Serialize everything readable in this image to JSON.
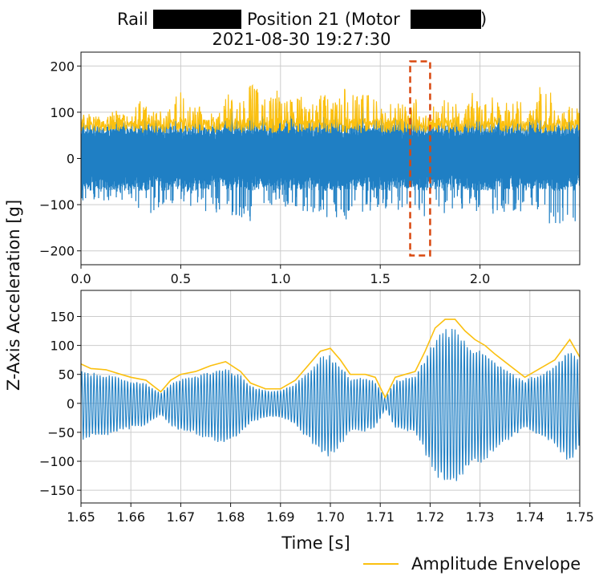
{
  "title": {
    "part1": "Rail",
    "part2": "Position 21 (Motor",
    "part3": ")",
    "line2": "2021-08-30 19:27:30"
  },
  "ylabel": "Z-Axis Acceleration [g]",
  "xlabel": "Time [s]",
  "legend": {
    "envelope_label": "Amplitude Envelope"
  },
  "colors": {
    "signal": "#1f7fc4",
    "envelope": "#fbc010",
    "highlight_box": "#d9480f",
    "redaction": "#000000",
    "grid": "#cccccc"
  },
  "chart_data": [
    {
      "type": "line",
      "x_range": [
        0.0,
        2.5
      ],
      "xlim": [
        0.0,
        2.5
      ],
      "ylim": [
        -230,
        230
      ],
      "xticks": [
        0.0,
        0.5,
        1.0,
        1.5,
        2.0
      ],
      "xtick_labels": [
        "0.0",
        "0.5",
        "1.0",
        "1.5",
        "2.0"
      ],
      "yticks": [
        200,
        100,
        0,
        -100,
        -200
      ],
      "ytick_labels": [
        "200",
        "100",
        "0",
        "−100",
        "−200"
      ],
      "grid": true,
      "highlight_box": {
        "x": [
          1.65,
          1.75
        ],
        "y": [
          -210,
          210
        ]
      },
      "envelope_peaks": [
        {
          "x": 0.02,
          "y": 100
        },
        {
          "x": 0.06,
          "y": 105
        },
        {
          "x": 0.1,
          "y": 90
        },
        {
          "x": 0.17,
          "y": 105
        },
        {
          "x": 0.24,
          "y": 95
        },
        {
          "x": 0.3,
          "y": 140
        },
        {
          "x": 0.35,
          "y": 120
        },
        {
          "x": 0.42,
          "y": 95
        },
        {
          "x": 0.47,
          "y": 150
        },
        {
          "x": 0.52,
          "y": 140
        },
        {
          "x": 0.58,
          "y": 110
        },
        {
          "x": 0.64,
          "y": 120
        },
        {
          "x": 0.69,
          "y": 100
        },
        {
          "x": 0.74,
          "y": 145
        },
        {
          "x": 0.8,
          "y": 120
        },
        {
          "x": 0.86,
          "y": 170
        },
        {
          "x": 0.92,
          "y": 130
        },
        {
          "x": 0.98,
          "y": 150
        },
        {
          "x": 1.04,
          "y": 125
        },
        {
          "x": 1.1,
          "y": 140
        },
        {
          "x": 1.16,
          "y": 120
        },
        {
          "x": 1.22,
          "y": 145
        },
        {
          "x": 1.28,
          "y": 125
        },
        {
          "x": 1.33,
          "y": 160
        },
        {
          "x": 1.39,
          "y": 140
        },
        {
          "x": 1.45,
          "y": 155
        },
        {
          "x": 1.51,
          "y": 120
        },
        {
          "x": 1.57,
          "y": 135
        },
        {
          "x": 1.63,
          "y": 110
        },
        {
          "x": 1.72,
          "y": 150
        },
        {
          "x": 1.78,
          "y": 110
        },
        {
          "x": 1.84,
          "y": 140
        },
        {
          "x": 1.9,
          "y": 110
        },
        {
          "x": 1.96,
          "y": 145
        },
        {
          "x": 2.02,
          "y": 115
        },
        {
          "x": 2.08,
          "y": 140
        },
        {
          "x": 2.14,
          "y": 120
        },
        {
          "x": 2.2,
          "y": 130
        },
        {
          "x": 2.26,
          "y": 110
        },
        {
          "x": 2.32,
          "y": 180
        },
        {
          "x": 2.38,
          "y": 120
        },
        {
          "x": 2.44,
          "y": 130
        },
        {
          "x": 2.49,
          "y": 110
        }
      ],
      "signal_minima": [
        {
          "x": 0.1,
          "y": -95
        },
        {
          "x": 0.22,
          "y": -100
        },
        {
          "x": 0.35,
          "y": -120
        },
        {
          "x": 0.49,
          "y": -90
        },
        {
          "x": 0.58,
          "y": -110
        },
        {
          "x": 0.86,
          "y": -140
        },
        {
          "x": 0.98,
          "y": -100
        },
        {
          "x": 1.14,
          "y": -120
        },
        {
          "x": 1.33,
          "y": -135
        },
        {
          "x": 1.52,
          "y": -110
        },
        {
          "x": 1.72,
          "y": -130
        },
        {
          "x": 1.9,
          "y": -110
        },
        {
          "x": 2.06,
          "y": -120
        },
        {
          "x": 2.24,
          "y": -115
        },
        {
          "x": 2.38,
          "y": -150
        }
      ]
    },
    {
      "type": "line",
      "xlim": [
        1.65,
        1.75
      ],
      "ylim": [
        -172,
        195
      ],
      "xticks": [
        1.65,
        1.66,
        1.67,
        1.68,
        1.69,
        1.7,
        1.71,
        1.72,
        1.73,
        1.74,
        1.75
      ],
      "xtick_labels": [
        "1.65",
        "1.66",
        "1.67",
        "1.68",
        "1.69",
        "1.70",
        "1.71",
        "1.72",
        "1.73",
        "1.74",
        "1.75"
      ],
      "yticks": [
        150,
        100,
        50,
        0,
        -50,
        -100,
        -150
      ],
      "ytick_labels": [
        "150",
        "100",
        "50",
        "0",
        "−50",
        "−100",
        "−150"
      ],
      "grid": true,
      "series": [
        {
          "name": "Amplitude Envelope",
          "x": [
            1.65,
            1.652,
            1.655,
            1.658,
            1.66,
            1.663,
            1.666,
            1.668,
            1.67,
            1.673,
            1.676,
            1.679,
            1.682,
            1.684,
            1.687,
            1.69,
            1.693,
            1.696,
            1.698,
            1.7,
            1.702,
            1.704,
            1.707,
            1.709,
            1.711,
            1.713,
            1.715,
            1.717,
            1.719,
            1.721,
            1.723,
            1.725,
            1.727,
            1.729,
            1.731,
            1.733,
            1.736,
            1.739,
            1.742,
            1.745,
            1.748,
            1.75
          ],
          "y": [
            68,
            60,
            58,
            50,
            45,
            40,
            20,
            40,
            50,
            55,
            65,
            72,
            55,
            35,
            25,
            25,
            40,
            70,
            90,
            95,
            75,
            50,
            50,
            45,
            10,
            45,
            50,
            55,
            90,
            130,
            145,
            145,
            125,
            110,
            100,
            85,
            65,
            45,
            60,
            75,
            110,
            80
          ]
        }
      ]
    }
  ]
}
